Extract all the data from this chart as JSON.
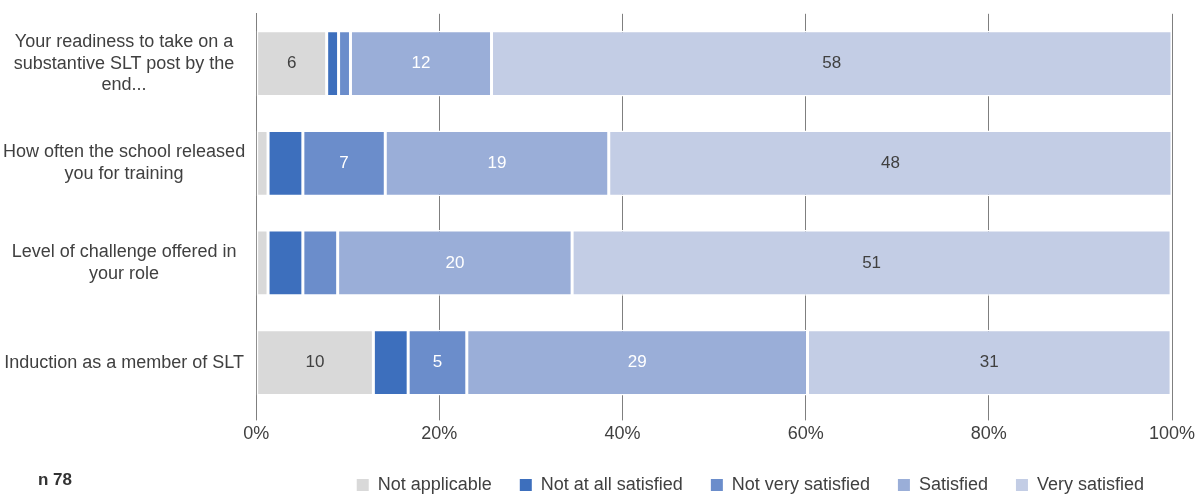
{
  "chart_data": {
    "type": "bar",
    "orientation": "horizontal",
    "stacked": true,
    "categories": [
      "Your readiness to take on a substantive SLT post by the end...",
      "How often the school released you for training",
      "Level of challenge offered in your role",
      "Induction as a member of SLT"
    ],
    "series": [
      {
        "name": "Not applicable",
        "color": "#d9d9d9",
        "values": [
          7.7,
          1.3,
          1.3,
          12.8
        ]
      },
      {
        "name": "Not at all satisfied",
        "color": "#3d6fbd",
        "values": [
          1.3,
          3.8,
          3.8,
          3.8
        ]
      },
      {
        "name": "Not very satisfied",
        "color": "#6b8dcb",
        "values": [
          1.3,
          9.0,
          3.8,
          6.4
        ]
      },
      {
        "name": "Satisfied",
        "color": "#9aaed8",
        "values": [
          15.4,
          24.4,
          25.6,
          37.2
        ]
      },
      {
        "name": "Very satisfied",
        "color": "#c3cde5",
        "values": [
          74.3,
          61.5,
          65.4,
          39.7
        ]
      }
    ],
    "xlim": [
      0,
      100
    ],
    "xticks": [
      {
        "value": 0,
        "label": "0%"
      },
      {
        "value": 20,
        "label": "20%"
      },
      {
        "value": 40,
        "label": "40%"
      },
      {
        "value": 60,
        "label": "60%"
      },
      {
        "value": 80,
        "label": "80%"
      },
      {
        "value": 100,
        "label": "100%"
      }
    ],
    "grid": "x",
    "legend": "bottom",
    "annotations": [
      "6",
      "12",
      "58",
      "7",
      "19",
      "48",
      "20",
      "51",
      "10",
      "5",
      "29",
      "31",
      "n 78"
    ]
  }
}
